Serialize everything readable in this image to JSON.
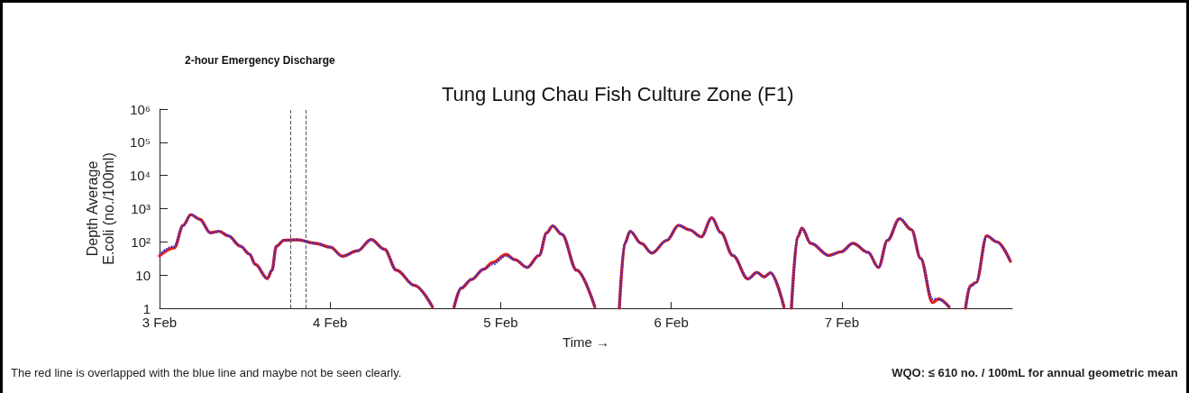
{
  "chart_data": {
    "type": "line",
    "title": "Tung Lung Chau Fish Culture Zone (F1)",
    "subtitle": "2-hour Emergency Discharge",
    "xlabel": "Time →",
    "ylabel": "Depth Average\nE.coli (no./100ml)",
    "annotations": [
      "The red line is overlapped with the blue line and maybe not be seen clearly.",
      "WQO: ≤ 610 no. / 100mL for annual geometric mean"
    ],
    "x": [
      "--02-03T00:00",
      "--02-03T02:04",
      "--02-03T03:20",
      "--02-03T04:24",
      "--02-03T05:40",
      "--02-03T07:09",
      "--02-03T08:24",
      "--02-03T09:40",
      "--02-03T11:23",
      "--02-03T12:39",
      "--02-03T13:29",
      "--02-03T15:10",
      "--02-03T15:49",
      "--02-03T16:26",
      "--02-03T17:30",
      "--02-03T19:24",
      "--02-03T21:56",
      "--02-04T00:03",
      "--02-04T01:44",
      "--02-04T03:52",
      "--02-04T05:46",
      "--02-04T07:39",
      "--02-04T09:20",
      "--02-04T11:53",
      "--02-04T14:24",
      "--02-04T15:50",
      "--02-04T17:27",
      "--02-04T18:26",
      "--02-04T19:55",
      "--02-04T21:36",
      "--02-04T22:52",
      "--02-05T00:46",
      "--02-05T02:02",
      "--02-05T03:43",
      "--02-05T05:25",
      "--02-05T06:29",
      "--02-05T07:19",
      "--02-05T08:36",
      "--02-05T10:42",
      "--02-05T13:15",
      "--02-05T14:53",
      "--02-05T16:42",
      "--02-05T17:28",
      "--02-05T18:13",
      "--02-05T19:48",
      "--02-05T21:16",
      "--02-05T23:23",
      "--02-06T01:03",
      "--02-06T02:33",
      "--02-06T04:13",
      "--02-06T05:43",
      "--02-06T06:59",
      "--02-06T08:40",
      "--02-06T10:48",
      "--02-06T12:03",
      "--02-06T13:06",
      "--02-06T13:58",
      "--02-06T15:52",
      "--02-06T16:19",
      "--02-06T16:55",
      "--02-06T17:46",
      "--02-06T18:24",
      "--02-06T19:39",
      "--02-06T22:12",
      "--02-06T23:53",
      "--02-07T01:35",
      "--02-07T03:42",
      "--02-07T05:10",
      "--02-07T06:26",
      "--02-07T08:08",
      "--02-07T09:49",
      "--02-07T11:05",
      "--02-07T12:46",
      "--02-07T13:38",
      "--02-07T15:06",
      "--02-07T16:19",
      "--02-07T17:25",
      "--02-07T18:04",
      "--02-07T18:55",
      "--02-07T20:24",
      "--02-07T21:50",
      "--02-07T23:44"
    ],
    "series": [
      {
        "color": "#e3231c",
        "line_style": "solid",
        "values": [
          38,
          66,
          316,
          660,
          480,
          188,
          208,
          152,
          74,
          43,
          21,
          7.9,
          14,
          74,
          111,
          116,
          90,
          69,
          37,
          54,
          118,
          60,
          14,
          4.9,
          1.1,
          null,
          1.1,
          4,
          7.4,
          15,
          24,
          42,
          29,
          17,
          39,
          188,
          302,
          170,
          14,
          1.1,
          null,
          1,
          90,
          208,
          90,
          46,
          111,
          316,
          232,
          142,
          530,
          190,
          39,
          7.7,
          12,
          8.8,
          11.7,
          1.1,
          null,
          1,
          137,
          257,
          90,
          39,
          50,
          90,
          48,
          17,
          111,
          500,
          232,
          32,
          1.5,
          1.9,
          1.1,
          null,
          1,
          4.8,
          6,
          152,
          100,
          26
        ]
      },
      {
        "color": "#2b2bd0",
        "line_style": "dotted",
        "values": [
          43,
          74,
          316,
          660,
          480,
          188,
          208,
          152,
          74,
          43,
          21,
          7.9,
          14,
          74,
          111,
          116,
          90,
          69,
          37,
          54,
          118,
          60,
          14,
          4.9,
          1.1,
          null,
          1.1,
          4,
          7.4,
          15,
          21,
          38,
          29,
          17,
          39,
          188,
          302,
          170,
          14,
          1.1,
          null,
          1,
          90,
          208,
          90,
          46,
          111,
          316,
          232,
          142,
          530,
          190,
          39,
          7.7,
          12,
          8.8,
          11.7,
          1.1,
          null,
          1,
          137,
          257,
          90,
          39,
          50,
          90,
          48,
          17,
          111,
          500,
          232,
          32,
          1.9,
          1.9,
          1.1,
          null,
          1,
          4.4,
          6,
          152,
          100,
          26
        ]
      }
    ],
    "xlim": [
      "--02-03",
      "--02-08"
    ],
    "xticks": [
      {
        "value": "--02-03",
        "label": "3 Feb"
      },
      {
        "value": "--02-04",
        "label": "4 Feb"
      },
      {
        "value": "--02-05",
        "label": "5 Feb"
      },
      {
        "value": "--02-06",
        "label": "6 Feb"
      },
      {
        "value": "--02-07",
        "label": "7 Feb"
      }
    ],
    "ylim": [
      1,
      1000000
    ],
    "yticks": [
      1,
      10,
      {
        "value": 100,
        "label": "10²"
      },
      {
        "value": 1000,
        "label": "10³"
      },
      {
        "value": 10000,
        "label": "10⁴"
      },
      {
        "value": 100000,
        "label": "10⁵"
      },
      {
        "value": 1000000,
        "label": "10⁶"
      }
    ],
    "log": "y",
    "grid": false,
    "marker": "none",
    "ref_lines": [
      {
        "axis": "x",
        "value": "--02-03T18:29",
        "color": "#555555",
        "line_style": "dashed"
      },
      {
        "axis": "x",
        "value": "--02-03T20:33",
        "color": "#555555",
        "line_style": "dashed"
      }
    ]
  }
}
